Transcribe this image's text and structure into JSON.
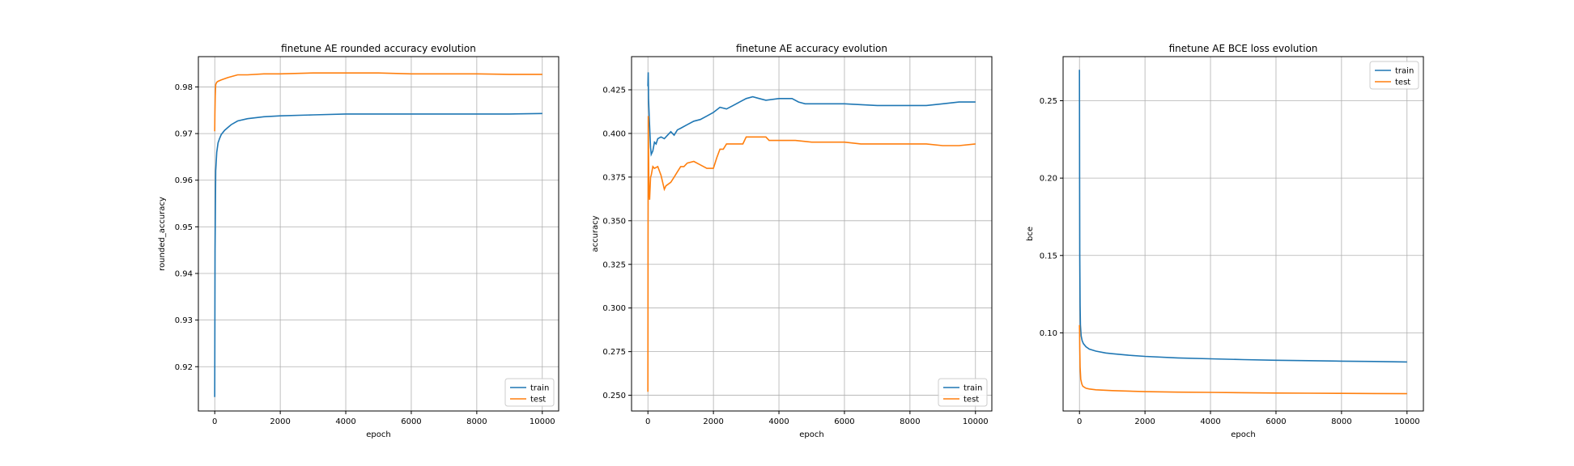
{
  "chart_data": [
    {
      "type": "line",
      "title": "finetune AE rounded accuracy evolution",
      "xlabel": "epoch",
      "ylabel": "rounded_accuracy",
      "xlim": [
        -500,
        10500
      ],
      "ylim": [
        0.9105,
        0.9865
      ],
      "xticks": [
        0,
        2000,
        4000,
        6000,
        8000,
        10000
      ],
      "yticks": [
        0.92,
        0.93,
        0.94,
        0.95,
        0.96,
        0.97,
        0.98
      ],
      "ytick_labels": [
        "0.92",
        "0.93",
        "0.94",
        "0.95",
        "0.96",
        "0.97",
        "0.98"
      ],
      "grid": true,
      "legend": "lower-right",
      "series": [
        {
          "name": "train",
          "color": "#1f77b4",
          "x": [
            0,
            10,
            30,
            60,
            100,
            150,
            200,
            300,
            400,
            500,
            700,
            1000,
            1500,
            2000,
            3000,
            4000,
            5000,
            6000,
            7000,
            8000,
            9000,
            10000
          ],
          "y": [
            0.9135,
            0.945,
            0.962,
            0.966,
            0.968,
            0.969,
            0.9698,
            0.9707,
            0.9713,
            0.9719,
            0.9727,
            0.9732,
            0.9736,
            0.9738,
            0.974,
            0.9742,
            0.9742,
            0.9742,
            0.9742,
            0.9742,
            0.9742,
            0.9743
          ]
        },
        {
          "name": "test",
          "color": "#ff7f0e",
          "x": [
            0,
            5,
            15,
            30,
            60,
            100,
            200,
            400,
            700,
            1000,
            1500,
            2000,
            3000,
            4000,
            5000,
            6000,
            7000,
            8000,
            9000,
            10000
          ],
          "y": [
            0.9705,
            0.974,
            0.978,
            0.9805,
            0.981,
            0.9812,
            0.9815,
            0.982,
            0.9826,
            0.9826,
            0.9828,
            0.9828,
            0.983,
            0.983,
            0.983,
            0.9828,
            0.9828,
            0.9828,
            0.9827,
            0.9827
          ]
        }
      ]
    },
    {
      "type": "line",
      "title": "finetune AE accuracy evolution",
      "xlabel": "epoch",
      "ylabel": "accuracy",
      "xlim": [
        -500,
        10500
      ],
      "ylim": [
        0.241,
        0.444
      ],
      "xticks": [
        0,
        2000,
        4000,
        6000,
        8000,
        10000
      ],
      "yticks": [
        0.25,
        0.275,
        0.3,
        0.325,
        0.35,
        0.375,
        0.4,
        0.425
      ],
      "ytick_labels": [
        "0.250",
        "0.275",
        "0.300",
        "0.325",
        "0.350",
        "0.375",
        "0.400",
        "0.425"
      ],
      "grid": true,
      "legend": "lower-right",
      "series": [
        {
          "name": "train",
          "color": "#1f77b4",
          "x": [
            0,
            8,
            20,
            40,
            60,
            80,
            100,
            150,
            200,
            250,
            300,
            400,
            500,
            600,
            700,
            800,
            900,
            1000,
            1200,
            1400,
            1600,
            1800,
            2000,
            2200,
            2400,
            2600,
            2800,
            3000,
            3200,
            3400,
            3600,
            4000,
            4400,
            4600,
            4800,
            5000,
            6000,
            7000,
            8000,
            8500,
            9000,
            9500,
            10000
          ],
          "y": [
            0.427,
            0.435,
            0.42,
            0.41,
            0.4,
            0.392,
            0.388,
            0.39,
            0.395,
            0.394,
            0.397,
            0.398,
            0.397,
            0.399,
            0.401,
            0.399,
            0.402,
            0.403,
            0.405,
            0.407,
            0.408,
            0.41,
            0.412,
            0.415,
            0.414,
            0.416,
            0.418,
            0.42,
            0.421,
            0.42,
            0.419,
            0.42,
            0.42,
            0.418,
            0.417,
            0.417,
            0.417,
            0.416,
            0.416,
            0.416,
            0.417,
            0.418,
            0.418
          ]
        },
        {
          "name": "test",
          "color": "#ff7f0e",
          "x": [
            0,
            5,
            12,
            20,
            30,
            50,
            80,
            100,
            150,
            200,
            300,
            400,
            500,
            550,
            700,
            800,
            900,
            1000,
            1100,
            1200,
            1400,
            1600,
            1800,
            2000,
            2100,
            2200,
            2300,
            2400,
            2500,
            2700,
            2900,
            3000,
            3300,
            3500,
            3600,
            3700,
            4000,
            4500,
            5000,
            5500,
            6000,
            6500,
            7000,
            8000,
            8500,
            9000,
            9500,
            10000
          ],
          "y": [
            0.252,
            0.34,
            0.41,
            0.39,
            0.37,
            0.362,
            0.375,
            0.376,
            0.381,
            0.38,
            0.381,
            0.376,
            0.368,
            0.37,
            0.372,
            0.375,
            0.378,
            0.381,
            0.381,
            0.383,
            0.384,
            0.382,
            0.38,
            0.38,
            0.386,
            0.391,
            0.391,
            0.394,
            0.394,
            0.394,
            0.394,
            0.398,
            0.398,
            0.398,
            0.398,
            0.396,
            0.396,
            0.396,
            0.395,
            0.395,
            0.395,
            0.394,
            0.394,
            0.394,
            0.394,
            0.393,
            0.393,
            0.394
          ]
        }
      ]
    },
    {
      "type": "line",
      "title": "finetune AE BCE loss evolution",
      "xlabel": "epoch",
      "ylabel": "bce",
      "xlim": [
        -500,
        10500
      ],
      "ylim": [
        0.0495,
        0.2785
      ],
      "xticks": [
        0,
        2000,
        4000,
        6000,
        8000,
        10000
      ],
      "yticks": [
        0.1,
        0.15,
        0.2,
        0.25
      ],
      "ytick_labels": [
        "0.10",
        "0.15",
        "0.20",
        "0.25"
      ],
      "grid": true,
      "legend": "upper-right",
      "series": [
        {
          "name": "train",
          "color": "#1f77b4",
          "x": [
            0,
            5,
            10,
            20,
            30,
            50,
            80,
            120,
            200,
            300,
            500,
            800,
            1000,
            1500,
            2000,
            3000,
            4000,
            5000,
            6000,
            7000,
            8000,
            9000,
            10000
          ],
          "y": [
            0.27,
            0.2,
            0.15,
            0.118,
            0.105,
            0.098,
            0.095,
            0.093,
            0.091,
            0.0895,
            0.0882,
            0.087,
            0.0865,
            0.0855,
            0.0848,
            0.0838,
            0.0832,
            0.0827,
            0.0823,
            0.082,
            0.0817,
            0.0815,
            0.0812
          ]
        },
        {
          "name": "test",
          "color": "#ff7f0e",
          "x": [
            0,
            5,
            10,
            20,
            40,
            70,
            100,
            150,
            200,
            300,
            500,
            1000,
            2000,
            3000,
            4000,
            5000,
            6000,
            7000,
            8000,
            9000,
            10000
          ],
          "y": [
            0.105,
            0.1,
            0.09,
            0.078,
            0.07,
            0.067,
            0.0655,
            0.0648,
            0.0642,
            0.0637,
            0.0632,
            0.0627,
            0.062,
            0.0617,
            0.0615,
            0.0613,
            0.0611,
            0.061,
            0.0609,
            0.0608,
            0.0607
          ]
        }
      ]
    }
  ]
}
